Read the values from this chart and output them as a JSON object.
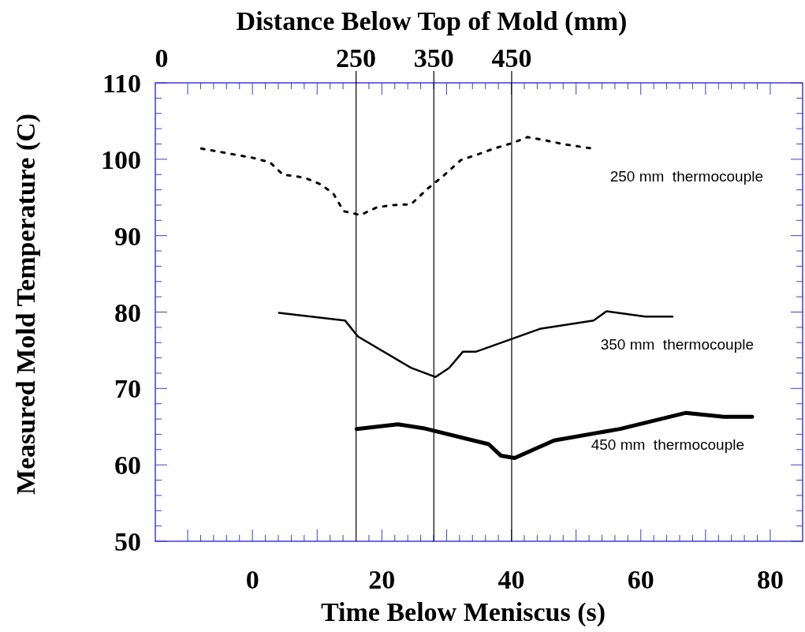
{
  "chart_data": {
    "type": "line",
    "xlabel": "Time Below Meniscus (s)",
    "ylabel": "Measured Mold Temperature (C)",
    "x2label": "Distance Below Top of Mold (mm)",
    "xlim": [
      -15,
      85
    ],
    "xticks": [
      {
        "value": -10,
        "label": null
      },
      0,
      {
        "value": 10,
        "label": null
      },
      20,
      {
        "value": 30,
        "label": null
      },
      40,
      {
        "value": 50,
        "label": null
      },
      60,
      {
        "value": 70,
        "label": null
      },
      80
    ],
    "ylim": [
      50,
      110
    ],
    "yticks": [
      50,
      60,
      70,
      80,
      90,
      100,
      110
    ],
    "x2lim": [
      -8,
      824
    ],
    "x2ticks": [
      0,
      250,
      350,
      450
    ],
    "grid": false,
    "ref_lines": [
      {
        "axis": "x2",
        "value": 250,
        "color": "#000000"
      },
      {
        "axis": "x2",
        "value": 350,
        "color": "#000000"
      },
      {
        "axis": "x2",
        "value": 450,
        "color": "#000000"
      }
    ],
    "series": [
      {
        "name": "250 mm  thermocouple",
        "color": "#000000",
        "line_style": "dotted",
        "x": [
          -7.9,
          0,
          2.7,
          4.7,
          8.0,
          10.6,
          12.5,
          14.1,
          16.7,
          19.2,
          21.6,
          24.5,
          27.0,
          29.6,
          32.2,
          34.7,
          37.3,
          40.1,
          42.5,
          45.1,
          47.9,
          52.5
        ],
        "values": [
          101.4,
          100.2,
          99.6,
          98.0,
          97.6,
          96.7,
          95.5,
          93.2,
          92.7,
          93.7,
          94.0,
          94.1,
          96.1,
          97.9,
          99.9,
          100.6,
          101.4,
          102.1,
          102.9,
          102.5,
          102.0,
          101.4
        ]
      },
      {
        "name": "350 mm  thermocouple",
        "color": "#000000",
        "line_style": "solid",
        "x": [
          4.1,
          14.3,
          16.3,
          24.5,
          28.3,
          30.4,
          32.5,
          34.5,
          44.4,
          52.7,
          54.7,
          60.7,
          64.9
        ],
        "values": [
          79.9,
          78.9,
          76.8,
          72.7,
          71.5,
          72.7,
          74.8,
          74.8,
          77.8,
          78.9,
          80.1,
          79.4,
          79.4
        ]
      },
      {
        "name": "450 mm  thermocouple",
        "color": "#000000",
        "line_style": "solid",
        "x": [
          16.1,
          22.5,
          26.4,
          36.5,
          38.4,
          40.5,
          46.6,
          56.8,
          66.9,
          72.8,
          77.2
        ],
        "values": [
          64.7,
          65.3,
          64.8,
          62.7,
          61.2,
          60.9,
          63.2,
          64.7,
          66.8,
          66.3,
          66.3
        ]
      }
    ]
  }
}
